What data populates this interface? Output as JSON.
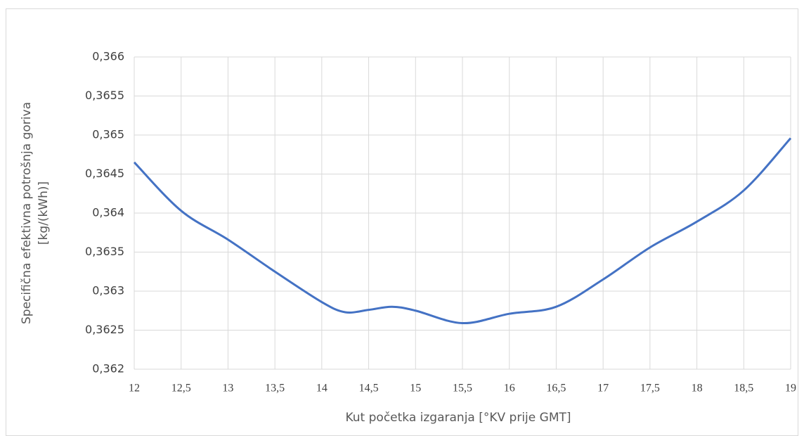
{
  "chart_data": {
    "type": "line",
    "x_label": "Kut početka izgaranja [°KV prije GMT]",
    "y_label": [
      "Specifična efektivna potrošnja goriva",
      "[kg/(kWh)]"
    ],
    "x": [
      12,
      12.5,
      13,
      13.5,
      14,
      14.25,
      14.5,
      14.75,
      15,
      15.5,
      16,
      16.5,
      17,
      17.5,
      18,
      18.5,
      19
    ],
    "series": [
      {
        "color": "#4472c4",
        "values": [
          0.36465,
          0.36403,
          0.36366,
          0.36325,
          0.36286,
          0.36273,
          0.36276,
          0.3628,
          0.36275,
          0.36259,
          0.36271,
          0.3628,
          0.36315,
          0.36356,
          0.36389,
          0.36429,
          0.36496
        ]
      }
    ],
    "xlim": [
      12,
      19
    ],
    "xticks": [
      12,
      {
        "value": 12.5,
        "label": "12,5"
      },
      13,
      {
        "value": 13.5,
        "label": "13,5"
      },
      14,
      {
        "value": 14.5,
        "label": "14,5"
      },
      15,
      {
        "value": 15.5,
        "label": "15,5"
      },
      16,
      {
        "value": 16.5,
        "label": "16,5"
      },
      17,
      {
        "value": 17.5,
        "label": "17,5"
      },
      18,
      {
        "value": 18.5,
        "label": "18,5"
      },
      19
    ],
    "ylim": [
      0.362,
      0.366
    ],
    "yticks": [
      {
        "value": 0.362,
        "label": "0,362"
      },
      {
        "value": 0.3625,
        "label": "0,3625"
      },
      {
        "value": 0.363,
        "label": "0,363"
      },
      {
        "value": 0.3635,
        "label": "0,3635"
      },
      {
        "value": 0.364,
        "label": "0,364"
      },
      {
        "value": 0.3645,
        "label": "0,3645"
      },
      {
        "value": 0.365,
        "label": "0,365"
      },
      {
        "value": 0.3655,
        "label": "0,3655"
      },
      {
        "value": 0.366,
        "label": "0,366"
      }
    ],
    "grid": true
  }
}
